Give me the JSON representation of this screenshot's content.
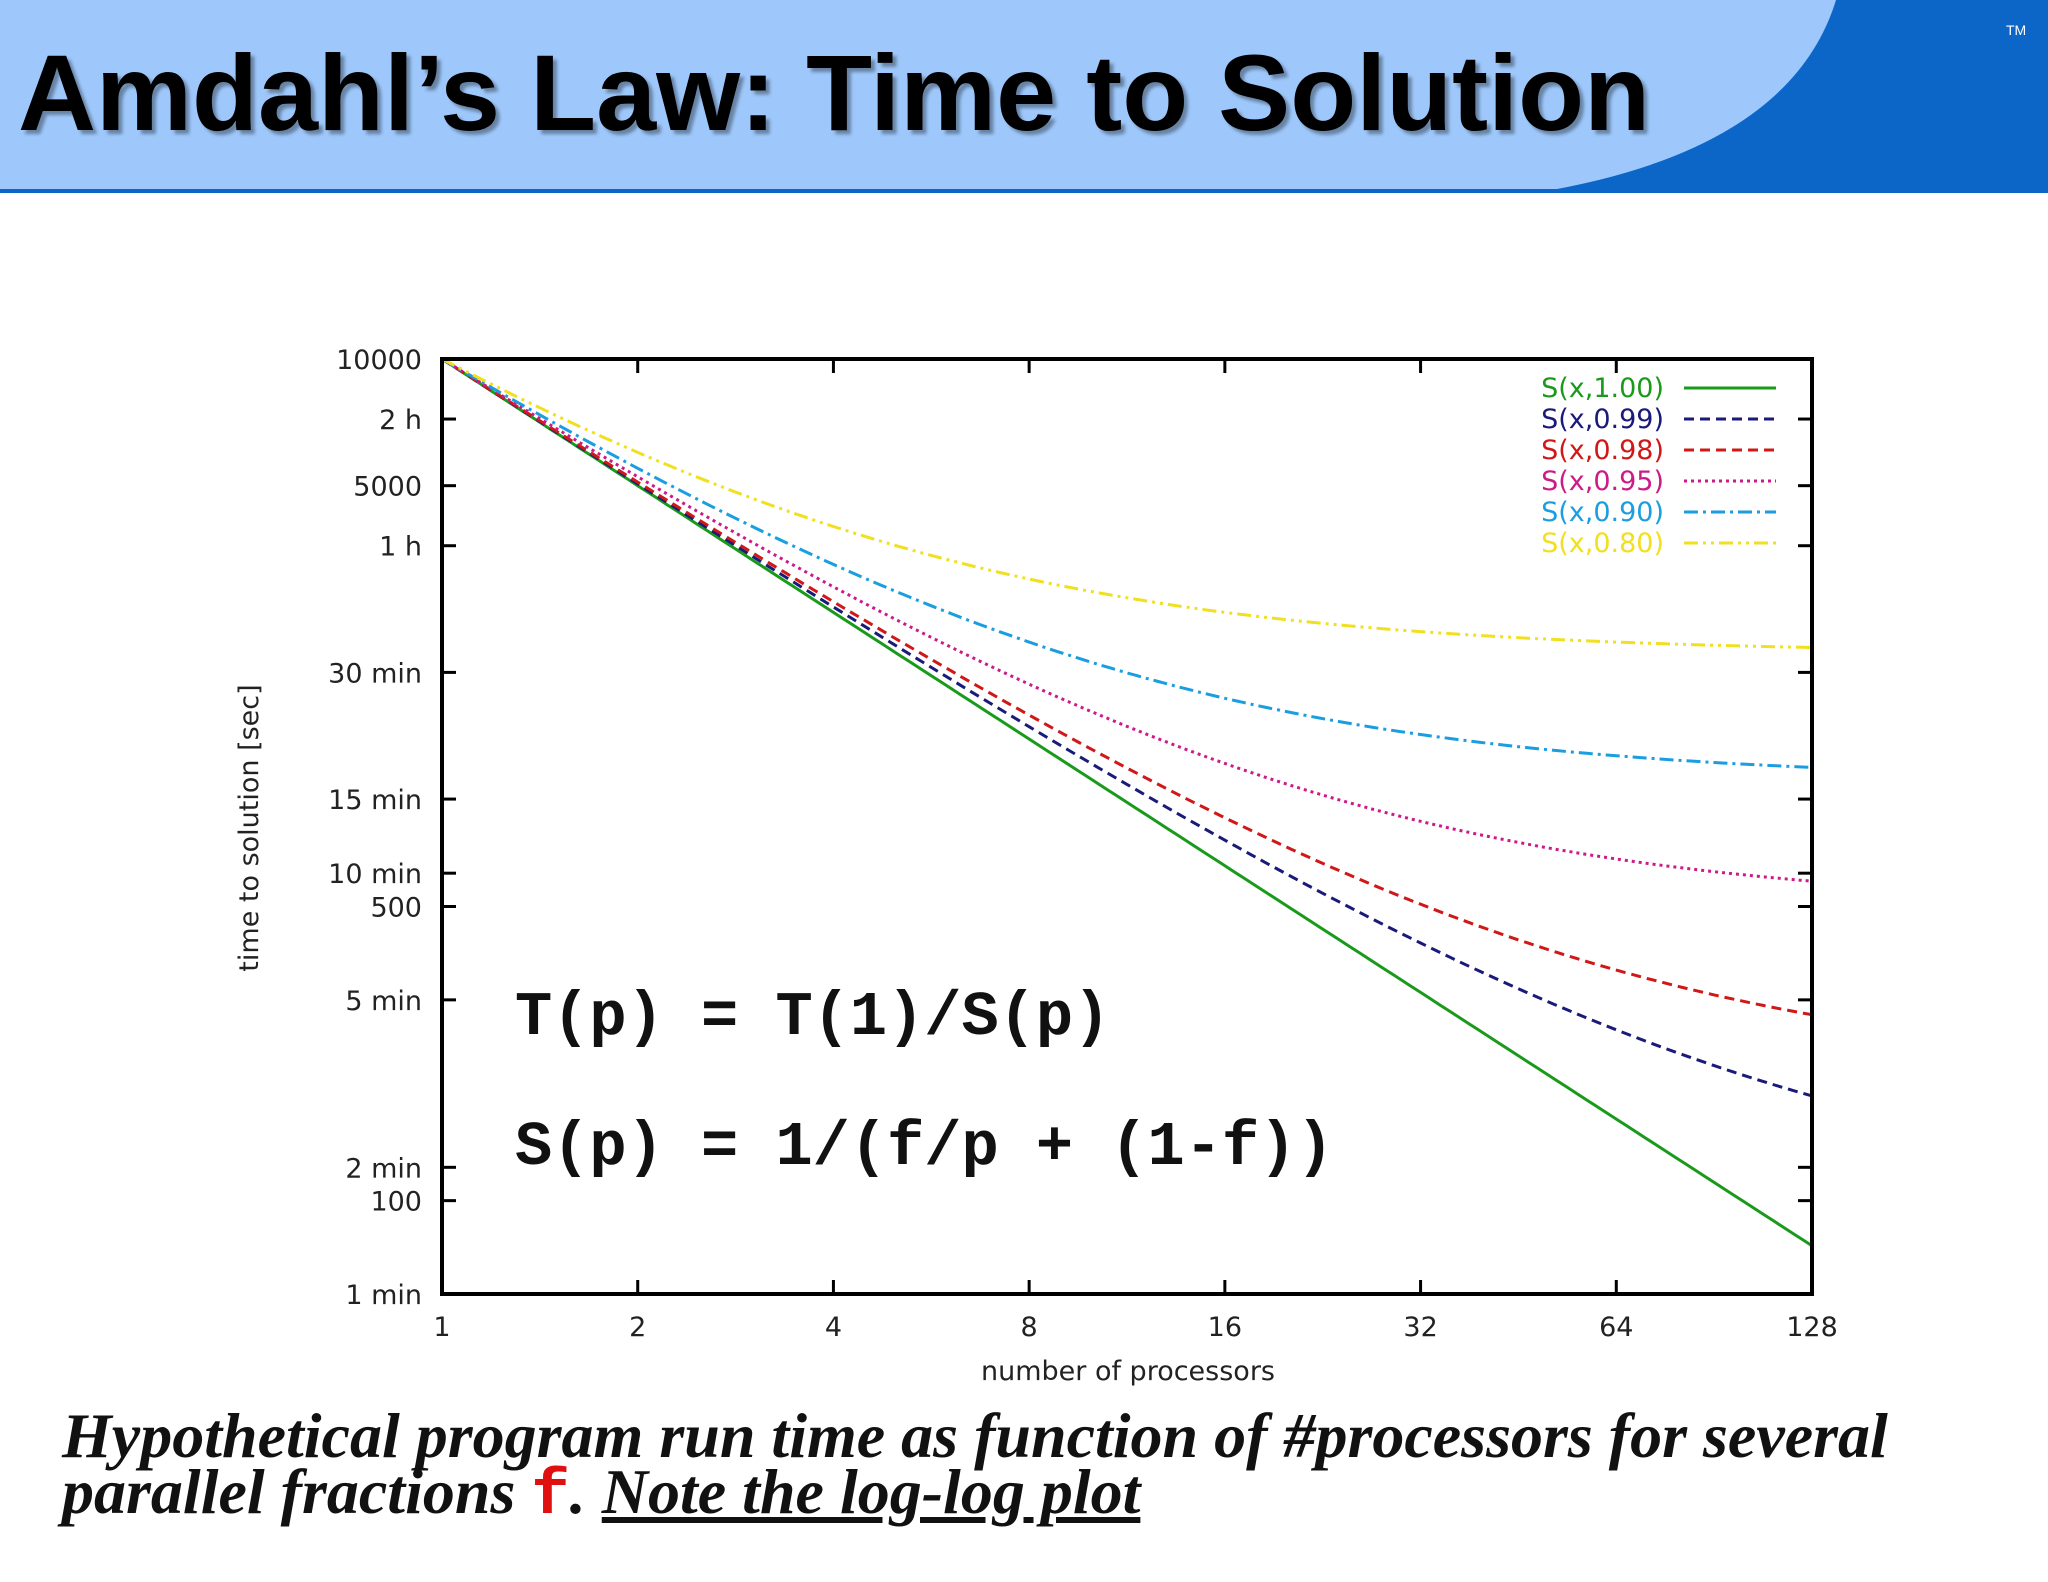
{
  "header": {
    "title": "Amdahl’s Law: Time to Solution",
    "trademark": "TM",
    "colors": {
      "light_band": "#9ec8fb",
      "dark_band": "#0b66c8"
    }
  },
  "chart_data": {
    "type": "line",
    "title": "",
    "xlabel": "number of processors",
    "ylabel": "time to solution [sec]",
    "xscale": "log2",
    "yscale": "log",
    "xlim": [
      1,
      128
    ],
    "ylim": [
      60,
      10000
    ],
    "x_ticks": [
      {
        "value": 1,
        "label": "1"
      },
      {
        "value": 2,
        "label": "2"
      },
      {
        "value": 4,
        "label": "4"
      },
      {
        "value": 8,
        "label": "8"
      },
      {
        "value": 16,
        "label": "16"
      },
      {
        "value": 32,
        "label": "32"
      },
      {
        "value": 64,
        "label": "64"
      },
      {
        "value": 128,
        "label": "128"
      }
    ],
    "y_ticks": [
      {
        "value": 10000,
        "label": "10000"
      },
      {
        "value": 7200,
        "label": "2 h"
      },
      {
        "value": 5000,
        "label": "5000"
      },
      {
        "value": 3600,
        "label": "1 h"
      },
      {
        "value": 1800,
        "label": "30 min"
      },
      {
        "value": 900,
        "label": "15 min"
      },
      {
        "value": 600,
        "label": "10 min"
      },
      {
        "value": 500,
        "label": "500"
      },
      {
        "value": 300,
        "label": "5 min"
      },
      {
        "value": 120,
        "label": "2 min"
      },
      {
        "value": 100,
        "label": "100"
      },
      {
        "value": 60,
        "label": "1 min"
      }
    ],
    "grid": false,
    "legend_position": "top-right",
    "series": [
      {
        "name": "S(x,1.00)",
        "f": 1.0,
        "color": "#1a9a1a",
        "dash": "solid",
        "x": [
          1,
          2,
          4,
          8,
          16,
          32,
          64,
          128
        ],
        "values": [
          10000,
          5000,
          2500,
          1250,
          625,
          312.5,
          156.3,
          78.1
        ]
      },
      {
        "name": "S(x,0.99)",
        "f": 0.99,
        "color": "#1a1a7a",
        "dash": "dashed",
        "x": [
          1,
          2,
          4,
          8,
          16,
          32,
          64,
          128
        ],
        "values": [
          10000,
          5050,
          2575,
          1338,
          719,
          409,
          255,
          177
        ]
      },
      {
        "name": "S(x,0.98)",
        "f": 0.98,
        "color": "#d01818",
        "dash": "dashed",
        "x": [
          1,
          2,
          4,
          8,
          16,
          32,
          64,
          128
        ],
        "values": [
          10000,
          5100,
          2650,
          1425,
          813,
          506,
          353,
          277
        ]
      },
      {
        "name": "S(x,0.95)",
        "f": 0.95,
        "color": "#cc1a8a",
        "dash": "dotted",
        "x": [
          1,
          2,
          4,
          8,
          16,
          32,
          64,
          128
        ],
        "values": [
          10000,
          5250,
          2875,
          1688,
          1094,
          797,
          648,
          574
        ]
      },
      {
        "name": "S(x,0.90)",
        "f": 0.9,
        "color": "#1a9ee0",
        "dash": "dashdot",
        "x": [
          1,
          2,
          4,
          8,
          16,
          32,
          64,
          128
        ],
        "values": [
          10000,
          5500,
          3250,
          2125,
          1563,
          1281,
          1141,
          1070
        ]
      },
      {
        "name": "S(x,0.80)",
        "f": 0.8,
        "color": "#f0e020",
        "dash": "dashdotdot",
        "x": [
          1,
          2,
          4,
          8,
          16,
          32,
          64,
          128
        ],
        "values": [
          10000,
          6000,
          4000,
          3000,
          2500,
          2250,
          2125,
          2063
        ]
      }
    ]
  },
  "formulas": {
    "line1": "T(p) = T(1)/S(p)",
    "line2": "S(p) = 1/(f/p + (1-f))"
  },
  "caption": {
    "main": "Hypothetical program run time as function of #processors for several parallel fractions ",
    "variable": "f",
    "separator": ". ",
    "note": "Note the log-log plot",
    "variable_color": "#e01010"
  }
}
